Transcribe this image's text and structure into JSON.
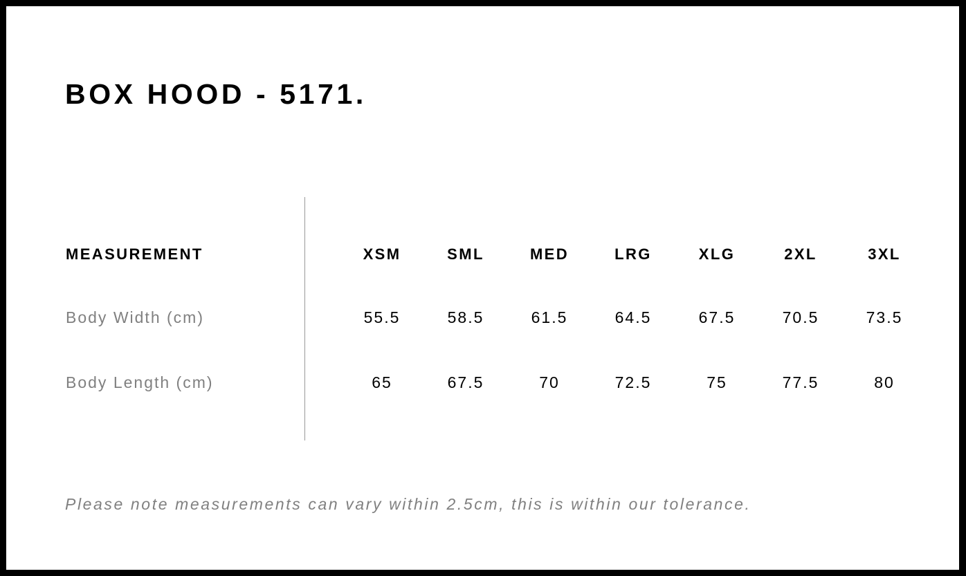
{
  "title": "BOX HOOD - 5171.",
  "table": {
    "header": {
      "label": "MEASUREMENT",
      "sizes": [
        "XSM",
        "SML",
        "MED",
        "LRG",
        "XLG",
        "2XL",
        "3XL"
      ]
    },
    "rows": [
      {
        "label": "Body Width (cm)",
        "values": [
          "55.5",
          "58.5",
          "61.5",
          "64.5",
          "67.5",
          "70.5",
          "73.5"
        ]
      },
      {
        "label": "Body Length (cm)",
        "values": [
          "65",
          "67.5",
          "70",
          "72.5",
          "75",
          "77.5",
          "80"
        ]
      }
    ]
  },
  "note": "Please note measurements can vary within 2.5cm, this is within our tolerance.",
  "colors": {
    "frame": "#000000",
    "label_gray": "#808080",
    "text": "#000000"
  }
}
